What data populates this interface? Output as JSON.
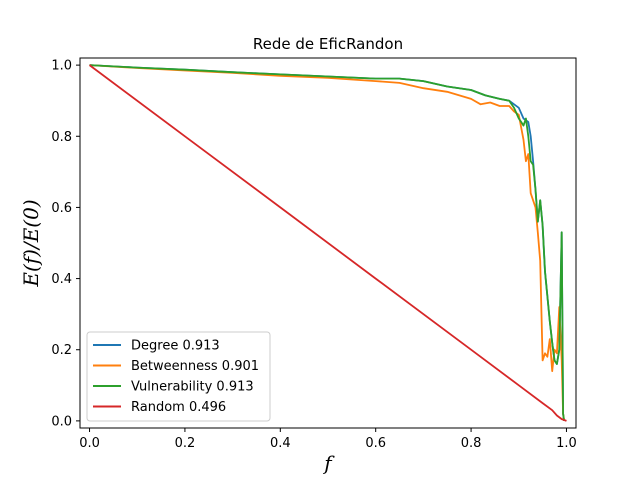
{
  "chart_data": {
    "type": "line",
    "title": "Rede de EficRandon",
    "xlabel": "f",
    "ylabel": "E(f)/E(0)",
    "xlim": [
      -0.02,
      1.02
    ],
    "ylim": [
      -0.02,
      1.02
    ],
    "xticks": [
      0.0,
      0.2,
      0.4,
      0.6,
      0.8,
      1.0
    ],
    "xtick_labels": [
      "0.0",
      "0.2",
      "0.4",
      "0.6",
      "0.8",
      "1.0"
    ],
    "yticks": [
      0.0,
      0.2,
      0.4,
      0.6,
      0.8,
      1.0
    ],
    "ytick_labels": [
      "0.0",
      "0.2",
      "0.4",
      "0.6",
      "0.8",
      "1.0"
    ],
    "grid": false,
    "legend_position": "lower-left",
    "series": [
      {
        "name": "Degree 0.913",
        "color": "#1f77b4",
        "x": [
          0.0,
          0.1,
          0.2,
          0.3,
          0.4,
          0.5,
          0.6,
          0.65,
          0.7,
          0.75,
          0.8,
          0.83,
          0.86,
          0.88,
          0.9,
          0.91,
          0.92,
          0.925,
          0.93,
          0.935,
          0.94,
          0.945,
          0.95,
          0.955,
          0.96,
          0.965,
          0.97,
          0.975,
          0.98,
          0.985,
          0.99,
          0.993,
          0.995
        ],
        "y": [
          1.0,
          0.993,
          0.987,
          0.98,
          0.974,
          0.968,
          0.962,
          0.962,
          0.955,
          0.94,
          0.93,
          0.915,
          0.905,
          0.9,
          0.88,
          0.85,
          0.84,
          0.8,
          0.73,
          0.65,
          0.56,
          0.62,
          0.55,
          0.42,
          0.35,
          0.28,
          0.22,
          0.17,
          0.16,
          0.2,
          0.53,
          0.02,
          0.0
        ]
      },
      {
        "name": "Betweenness 0.901",
        "color": "#ff7f0e",
        "x": [
          0.0,
          0.1,
          0.2,
          0.3,
          0.4,
          0.5,
          0.6,
          0.65,
          0.7,
          0.75,
          0.8,
          0.82,
          0.84,
          0.86,
          0.88,
          0.89,
          0.9,
          0.91,
          0.915,
          0.92,
          0.925,
          0.93,
          0.935,
          0.94,
          0.945,
          0.95,
          0.955,
          0.96,
          0.965,
          0.97,
          0.975,
          0.98,
          0.985,
          0.99,
          0.993,
          0.995
        ],
        "y": [
          1.0,
          0.992,
          0.985,
          0.978,
          0.97,
          0.964,
          0.955,
          0.95,
          0.935,
          0.925,
          0.905,
          0.89,
          0.895,
          0.885,
          0.885,
          0.87,
          0.86,
          0.79,
          0.73,
          0.75,
          0.64,
          0.62,
          0.6,
          0.53,
          0.45,
          0.17,
          0.19,
          0.18,
          0.23,
          0.14,
          0.2,
          0.19,
          0.32,
          0.17,
          0.02,
          0.0
        ]
      },
      {
        "name": "Vulnerability 0.913",
        "color": "#2ca02c",
        "x": [
          0.0,
          0.1,
          0.2,
          0.3,
          0.4,
          0.5,
          0.6,
          0.65,
          0.7,
          0.75,
          0.8,
          0.83,
          0.86,
          0.88,
          0.89,
          0.9,
          0.905,
          0.91,
          0.915,
          0.92,
          0.925,
          0.93,
          0.935,
          0.94,
          0.945,
          0.95,
          0.955,
          0.96,
          0.965,
          0.97,
          0.975,
          0.98,
          0.985,
          0.99,
          0.993,
          0.995
        ],
        "y": [
          1.0,
          0.993,
          0.987,
          0.98,
          0.974,
          0.968,
          0.962,
          0.962,
          0.955,
          0.94,
          0.93,
          0.915,
          0.905,
          0.9,
          0.88,
          0.85,
          0.84,
          0.83,
          0.85,
          0.8,
          0.73,
          0.72,
          0.65,
          0.56,
          0.62,
          0.55,
          0.42,
          0.35,
          0.28,
          0.22,
          0.17,
          0.16,
          0.2,
          0.53,
          0.02,
          0.0
        ]
      },
      {
        "name": "Random 0.496",
        "color": "#d62728",
        "x": [
          0.0,
          0.2,
          0.4,
          0.6,
          0.8,
          0.9,
          0.95,
          0.97,
          0.98,
          0.99,
          1.0
        ],
        "y": [
          1.0,
          0.8,
          0.6,
          0.4,
          0.2,
          0.1,
          0.05,
          0.03,
          0.015,
          0.005,
          0.0
        ]
      }
    ]
  }
}
